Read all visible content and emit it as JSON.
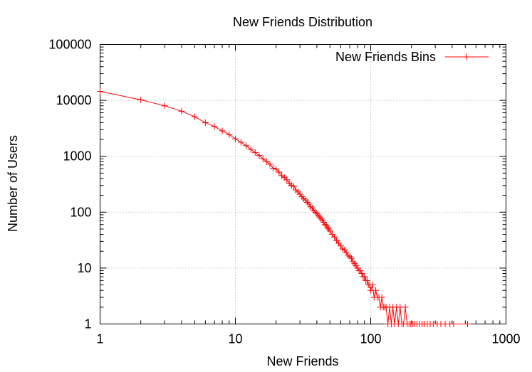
{
  "chart_data": {
    "type": "line",
    "title": "New Friends Distribution",
    "xlabel": "New Friends",
    "ylabel": "Number of Users",
    "xscale": "log",
    "yscale": "log",
    "xlim": [
      1,
      1000
    ],
    "ylim": [
      1,
      100000
    ],
    "x_ticks": [
      {
        "value": 1,
        "label": "1"
      },
      {
        "value": 10,
        "label": "10"
      },
      {
        "value": 100,
        "label": "100"
      },
      {
        "value": 1000,
        "label": "1000"
      }
    ],
    "y_ticks": [
      {
        "value": 1,
        "label": "1"
      },
      {
        "value": 10,
        "label": "10"
      },
      {
        "value": 100,
        "label": "100"
      },
      {
        "value": 1000,
        "label": "1000"
      },
      {
        "value": 10000,
        "label": "10000"
      },
      {
        "value": 100000,
        "label": "100000"
      }
    ],
    "grid": true,
    "legend_position": "top-right",
    "series": [
      {
        "name": "New Friends Bins",
        "color": "#ff0000",
        "marker": "plus",
        "points": [
          [
            1,
            14500
          ],
          [
            2,
            10200
          ],
          [
            3,
            8000
          ],
          [
            4,
            6400
          ],
          [
            5,
            5100
          ],
          [
            6,
            4000
          ],
          [
            7,
            3400
          ],
          [
            8,
            2850
          ],
          [
            9,
            2450
          ],
          [
            10,
            2050
          ],
          [
            11,
            1780
          ],
          [
            12,
            1550
          ],
          [
            13,
            1330
          ],
          [
            14,
            1170
          ],
          [
            15,
            1030
          ],
          [
            16,
            900
          ],
          [
            17,
            800
          ],
          [
            18,
            720
          ],
          [
            19,
            610
          ],
          [
            20,
            590
          ],
          [
            21,
            520
          ],
          [
            22,
            450
          ],
          [
            23,
            420
          ],
          [
            24,
            380
          ],
          [
            25,
            330
          ],
          [
            26,
            300
          ],
          [
            27,
            290
          ],
          [
            28,
            250
          ],
          [
            29,
            230
          ],
          [
            30,
            210
          ],
          [
            31,
            190
          ],
          [
            32,
            175
          ],
          [
            33,
            165
          ],
          [
            34,
            150
          ],
          [
            35,
            140
          ],
          [
            36,
            125
          ],
          [
            37,
            118
          ],
          [
            38,
            108
          ],
          [
            39,
            100
          ],
          [
            40,
            95
          ],
          [
            41,
            88
          ],
          [
            42,
            82
          ],
          [
            43,
            76
          ],
          [
            44,
            72
          ],
          [
            45,
            66
          ],
          [
            46,
            60
          ],
          [
            47,
            58
          ],
          [
            48,
            53
          ],
          [
            49,
            50
          ],
          [
            50,
            46
          ],
          [
            52,
            40
          ],
          [
            54,
            36
          ],
          [
            56,
            31
          ],
          [
            58,
            28
          ],
          [
            60,
            25
          ],
          [
            62,
            22
          ],
          [
            64,
            21
          ],
          [
            66,
            19
          ],
          [
            68,
            17
          ],
          [
            70,
            16
          ],
          [
            72,
            15
          ],
          [
            74,
            13
          ],
          [
            76,
            12
          ],
          [
            78,
            11
          ],
          [
            80,
            10
          ],
          [
            82,
            9
          ],
          [
            84,
            9
          ],
          [
            86,
            8
          ],
          [
            88,
            7
          ],
          [
            90,
            7
          ],
          [
            92,
            6
          ],
          [
            94,
            6
          ],
          [
            96,
            5
          ],
          [
            98,
            5
          ],
          [
            100,
            4
          ],
          [
            103,
            5
          ],
          [
            106,
            3
          ],
          [
            109,
            4
          ],
          [
            112,
            3
          ],
          [
            115,
            3
          ],
          [
            118,
            2
          ],
          [
            121,
            3
          ],
          [
            124,
            2
          ],
          [
            127,
            2
          ],
          [
            130,
            2
          ],
          [
            134,
            1
          ],
          [
            138,
            2
          ],
          [
            142,
            1
          ],
          [
            146,
            2
          ],
          [
            150,
            1
          ],
          [
            155,
            2
          ],
          [
            160,
            1
          ],
          [
            165,
            2
          ],
          [
            170,
            1
          ],
          [
            175,
            1
          ],
          [
            180,
            2
          ],
          [
            186,
            1
          ],
          [
            192,
            1
          ],
          [
            198,
            1
          ],
          [
            205,
            1
          ],
          [
            212,
            1
          ],
          [
            220,
            1
          ],
          [
            230,
            1
          ],
          [
            240,
            1
          ],
          [
            250,
            1
          ],
          [
            262,
            1
          ],
          [
            275,
            1
          ],
          [
            290,
            1
          ],
          [
            310,
            1
          ],
          [
            330,
            1
          ],
          [
            355,
            1
          ],
          [
            385,
            1
          ],
          [
            410,
            1
          ],
          [
            520,
            1
          ]
        ]
      }
    ]
  }
}
